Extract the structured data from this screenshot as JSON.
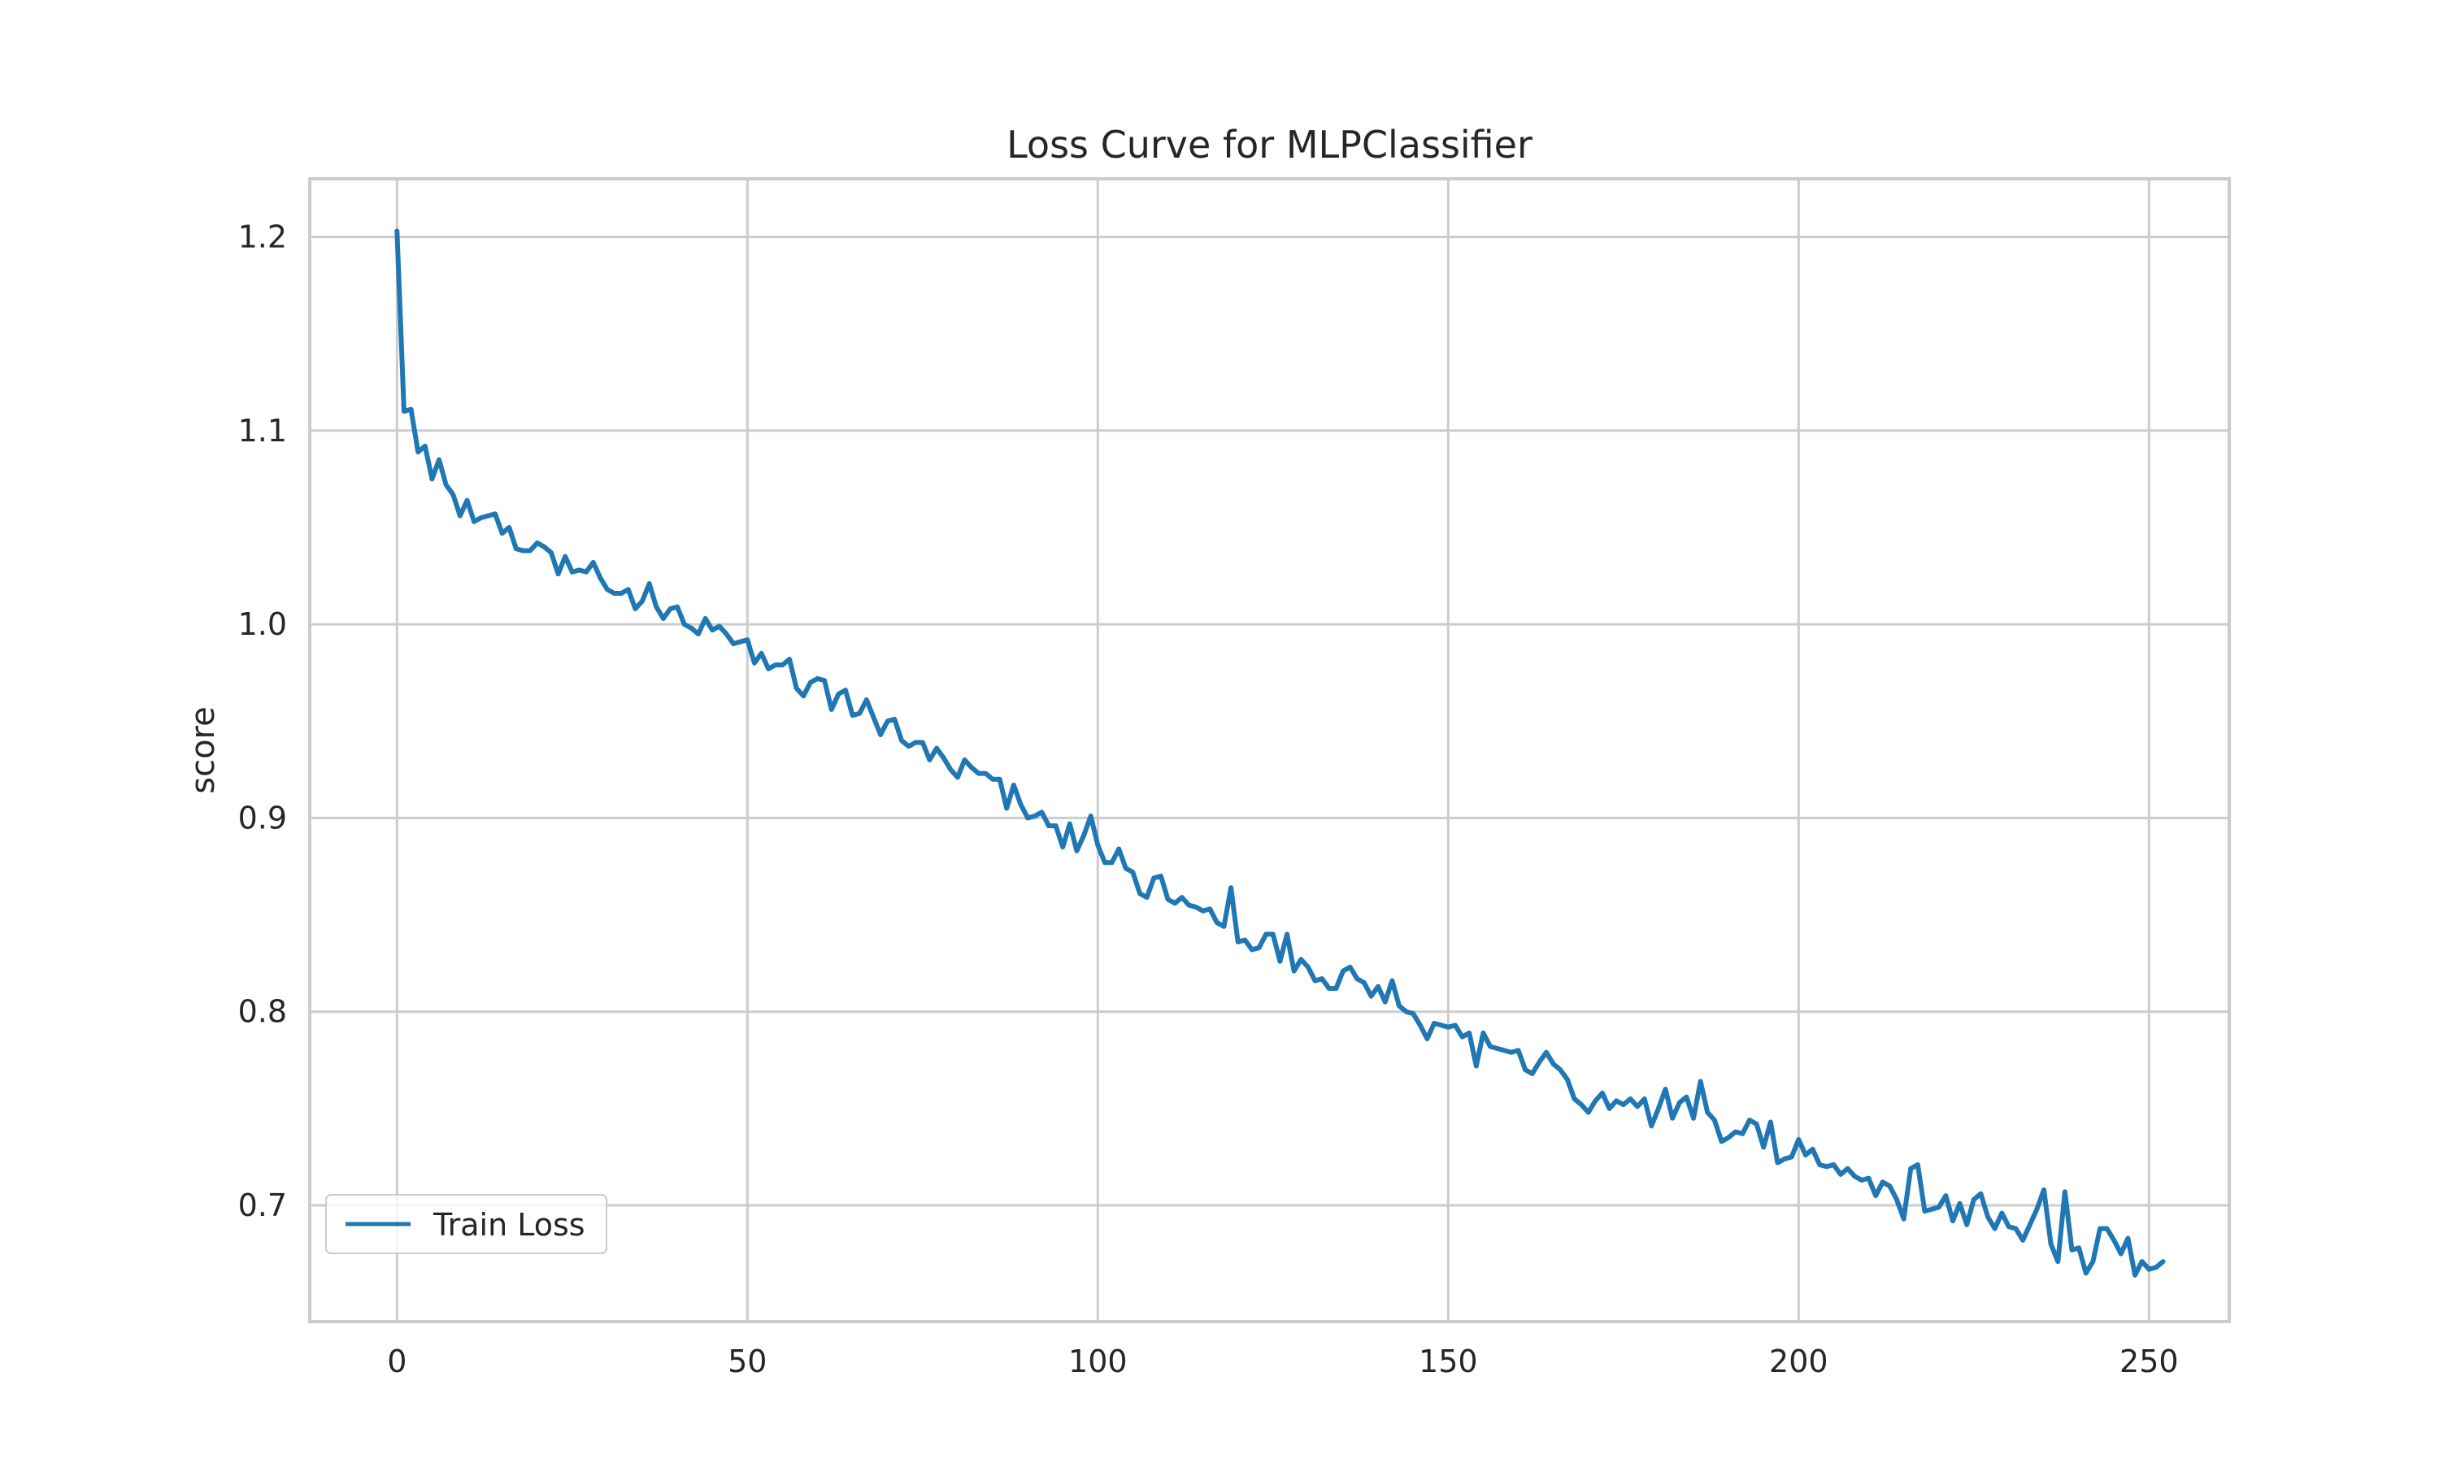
{
  "chart_data": {
    "type": "line",
    "title": "Loss Curve for MLPClassifier",
    "xlabel": "",
    "ylabel": "score",
    "xlim": [
      -12.45,
      261.45
    ],
    "ylim": [
      0.64,
      1.23
    ],
    "xticks": [
      0,
      50,
      100,
      150,
      200,
      250
    ],
    "yticks": [
      0.7,
      0.8,
      0.9,
      1.0,
      1.1,
      1.2
    ],
    "xtick_labels": [
      "0",
      "50",
      "100",
      "150",
      "200",
      "250"
    ],
    "ytick_labels": [
      "0.7",
      "0.8",
      "0.9",
      "1.0",
      "1.1",
      "1.2"
    ],
    "grid": true,
    "legend": {
      "position": "lower-left"
    },
    "series": [
      {
        "name": "Train Loss",
        "color": "#1f77b4",
        "x_start": 0,
        "x_step": 1,
        "values": [
          1.203,
          1.11,
          1.111,
          1.089,
          1.092,
          1.075,
          1.085,
          1.072,
          1.067,
          1.056,
          1.064,
          1.053,
          1.055,
          1.056,
          1.057,
          1.047,
          1.05,
          1.039,
          1.038,
          1.038,
          1.042,
          1.04,
          1.037,
          1.026,
          1.035,
          1.027,
          1.028,
          1.027,
          1.032,
          1.024,
          1.018,
          1.016,
          1.016,
          1.018,
          1.008,
          1.012,
          1.021,
          1.009,
          1.003,
          1.008,
          1.009,
          1.0,
          0.998,
          0.995,
          1.003,
          0.997,
          0.999,
          0.995,
          0.99,
          0.991,
          0.992,
          0.98,
          0.985,
          0.977,
          0.979,
          0.979,
          0.982,
          0.967,
          0.963,
          0.97,
          0.972,
          0.971,
          0.956,
          0.964,
          0.966,
          0.953,
          0.954,
          0.961,
          0.952,
          0.943,
          0.95,
          0.951,
          0.94,
          0.937,
          0.939,
          0.939,
          0.93,
          0.936,
          0.931,
          0.925,
          0.921,
          0.93,
          0.926,
          0.923,
          0.923,
          0.92,
          0.92,
          0.905,
          0.917,
          0.907,
          0.9,
          0.901,
          0.903,
          0.896,
          0.896,
          0.885,
          0.897,
          0.883,
          0.891,
          0.901,
          0.886,
          0.877,
          0.877,
          0.884,
          0.874,
          0.872,
          0.861,
          0.859,
          0.869,
          0.87,
          0.858,
          0.856,
          0.859,
          0.855,
          0.854,
          0.852,
          0.853,
          0.846,
          0.844,
          0.864,
          0.836,
          0.837,
          0.832,
          0.833,
          0.84,
          0.84,
          0.826,
          0.84,
          0.821,
          0.827,
          0.823,
          0.816,
          0.817,
          0.812,
          0.812,
          0.821,
          0.823,
          0.817,
          0.815,
          0.808,
          0.813,
          0.805,
          0.816,
          0.803,
          0.8,
          0.799,
          0.793,
          0.786,
          0.794,
          0.793,
          0.792,
          0.793,
          0.787,
          0.789,
          0.772,
          0.789,
          0.782,
          0.781,
          0.78,
          0.779,
          0.78,
          0.77,
          0.768,
          0.774,
          0.779,
          0.773,
          0.77,
          0.765,
          0.755,
          0.752,
          0.748,
          0.754,
          0.758,
          0.75,
          0.754,
          0.752,
          0.755,
          0.751,
          0.755,
          0.741,
          0.75,
          0.76,
          0.745,
          0.753,
          0.756,
          0.745,
          0.764,
          0.748,
          0.744,
          0.733,
          0.735,
          0.738,
          0.737,
          0.744,
          0.742,
          0.73,
          0.743,
          0.722,
          0.724,
          0.725,
          0.734,
          0.726,
          0.729,
          0.721,
          0.72,
          0.721,
          0.716,
          0.719,
          0.715,
          0.713,
          0.714,
          0.705,
          0.712,
          0.71,
          0.703,
          0.693,
          0.719,
          0.721,
          0.697,
          0.698,
          0.699,
          0.705,
          0.692,
          0.701,
          0.69,
          0.703,
          0.706,
          0.694,
          0.688,
          0.696,
          0.689,
          0.688,
          0.682,
          0.69,
          0.698,
          0.708,
          0.68,
          0.671,
          0.707,
          0.677,
          0.678,
          0.665,
          0.671,
          0.688,
          0.688,
          0.682,
          0.675,
          0.683,
          0.664,
          0.671,
          0.667,
          0.668,
          0.671
        ]
      }
    ]
  }
}
